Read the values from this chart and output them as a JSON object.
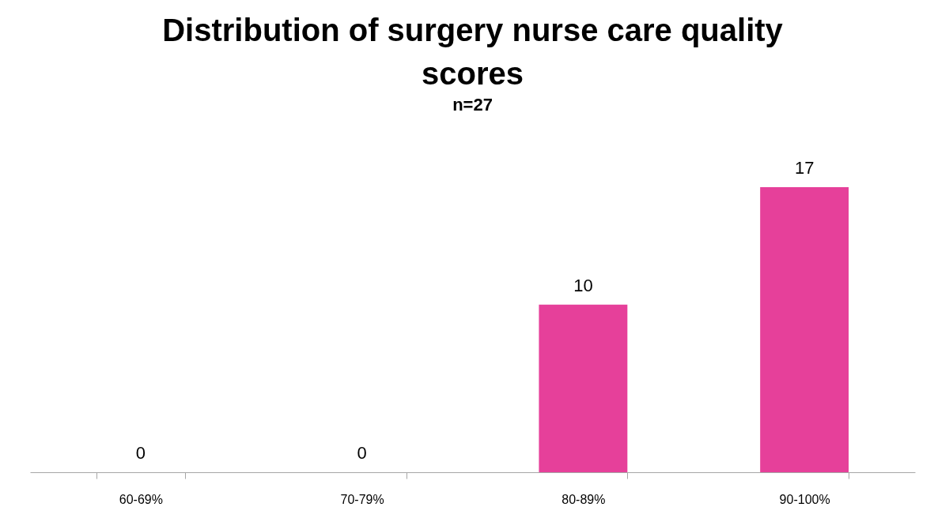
{
  "chart_data": {
    "type": "bar",
    "title": "Distribution of surgery nurse care quality scores",
    "subtitle": "n=27",
    "categories": [
      "60-69%",
      "70-79%",
      "80-89%",
      "90-100%"
    ],
    "values": [
      0,
      0,
      10,
      17
    ],
    "color": "#e6409a",
    "data_labels": true,
    "tick_labels": "x"
  }
}
